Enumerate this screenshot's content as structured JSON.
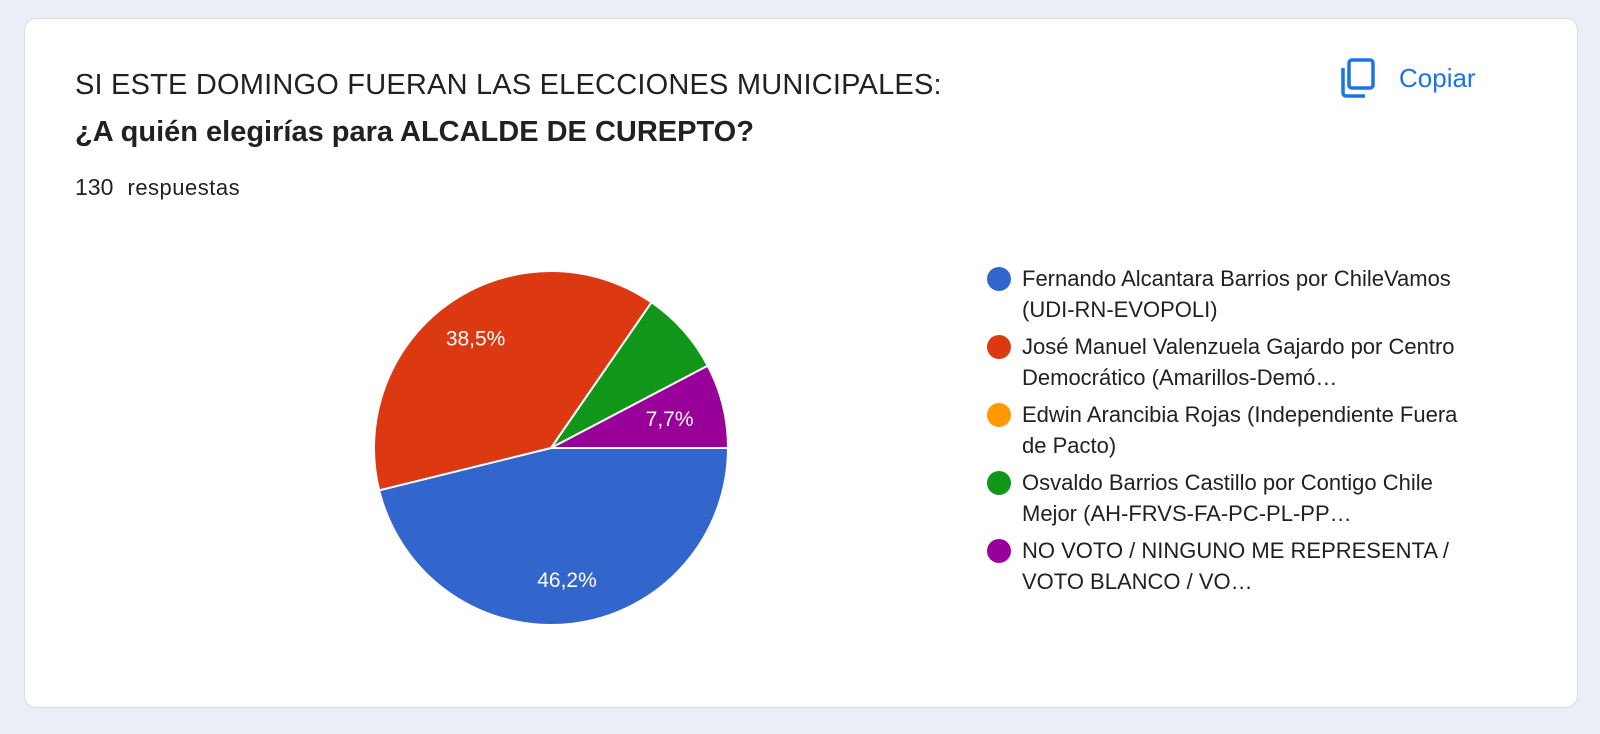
{
  "form": {
    "title": "SI ESTE DOMINGO FUERAN LAS ELECCIONES MUNICIPALES:",
    "subtitle": "¿A quién elegirías para ALCALDE DE CUREPTO?",
    "responses_count": "130",
    "responses_label": "respuestas",
    "copy_label": "Copiar",
    "copy_icon": "copy-icon",
    "accent_color": "#1a73e8"
  },
  "chart_data": {
    "type": "pie",
    "total_responses": 130,
    "slices": [
      {
        "label": "Fernando Alcantara Barrios por ChileVamos (UDI-RN-EVOPOLI)",
        "value": 46.2,
        "display": "46,2%",
        "color": "#3366cc"
      },
      {
        "label": "José Manuel Valenzuela Gajardo por Centro Democrático (Amarillos-Demó…",
        "value": 38.5,
        "display": "38,5%",
        "color": "#dc3912"
      },
      {
        "label": "Edwin Arancibia Rojas (Independiente Fuera de Pacto)",
        "value": 0,
        "display": "",
        "color": "#ff9900"
      },
      {
        "label": "Osvaldo Barrios Castillo por Contigo Chile Mejor (AH-FRVS-FA-PC-PL-PP…",
        "value": 7.7,
        "display": "",
        "color": "#109618"
      },
      {
        "label": "NO VOTO / NINGUNO ME REPRESENTA / VOTO BLANCO / VO…",
        "value": 7.7,
        "display": "7,7%",
        "color": "#990099"
      }
    ],
    "legend_position": "right"
  }
}
